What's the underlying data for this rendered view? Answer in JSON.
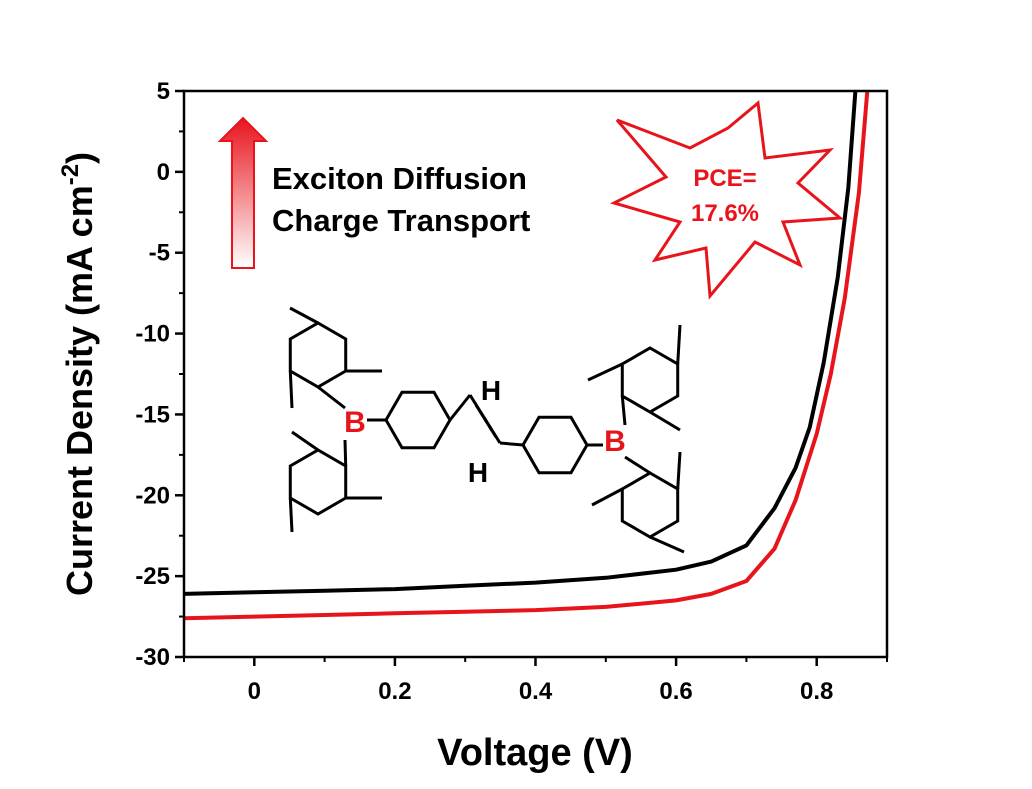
{
  "chart_data": {
    "type": "line",
    "xlabel": "Voltage (V)",
    "ylabel": {
      "text": "Current Density (mA cm",
      "superscript": "-2",
      "suffix": ")"
    },
    "xlim": [
      -0.1,
      0.9
    ],
    "xticks": [
      0,
      0.2,
      0.4,
      0.6,
      0.8
    ],
    "xminorticks": [
      -0.1,
      0.1,
      0.3,
      0.5,
      0.7,
      0.9
    ],
    "ylim": [
      -30,
      5
    ],
    "yticks": [
      5,
      0,
      -5,
      -10,
      -15,
      -20,
      -25,
      -30
    ],
    "yminorticks": [
      2.5,
      -2.5,
      -7.5,
      -12.5,
      -17.5,
      -22.5,
      -27.5
    ],
    "series": [
      {
        "color": "#000000",
        "x": [
          -0.1,
          0,
          0.1,
          0.2,
          0.3,
          0.4,
          0.5,
          0.6,
          0.65,
          0.7,
          0.74,
          0.77,
          0.79,
          0.81,
          0.83,
          0.845,
          0.855
        ],
        "y": [
          -26.1,
          -26.0,
          -25.9,
          -25.8,
          -25.6,
          -25.4,
          -25.1,
          -24.6,
          -24.1,
          -23.1,
          -20.8,
          -18.3,
          -15.8,
          -11.8,
          -6.5,
          -1.0,
          5.0
        ]
      },
      {
        "color": "#e8141c",
        "x": [
          -0.1,
          0,
          0.1,
          0.2,
          0.3,
          0.4,
          0.5,
          0.6,
          0.65,
          0.7,
          0.74,
          0.77,
          0.8,
          0.82,
          0.84,
          0.86,
          0.872
        ],
        "y": [
          -27.6,
          -27.5,
          -27.4,
          -27.3,
          -27.2,
          -27.1,
          -26.9,
          -26.5,
          -26.1,
          -25.3,
          -23.3,
          -20.3,
          -16.2,
          -12.5,
          -7.8,
          -1.3,
          5.0
        ]
      }
    ],
    "annotations": {
      "arrow_text": [
        "Exciton Diffusion",
        "Charge Transport"
      ],
      "pce": [
        "PCE=",
        "17.6%"
      ]
    },
    "structure_labels": [
      "B",
      "H",
      "H",
      "B"
    ]
  }
}
